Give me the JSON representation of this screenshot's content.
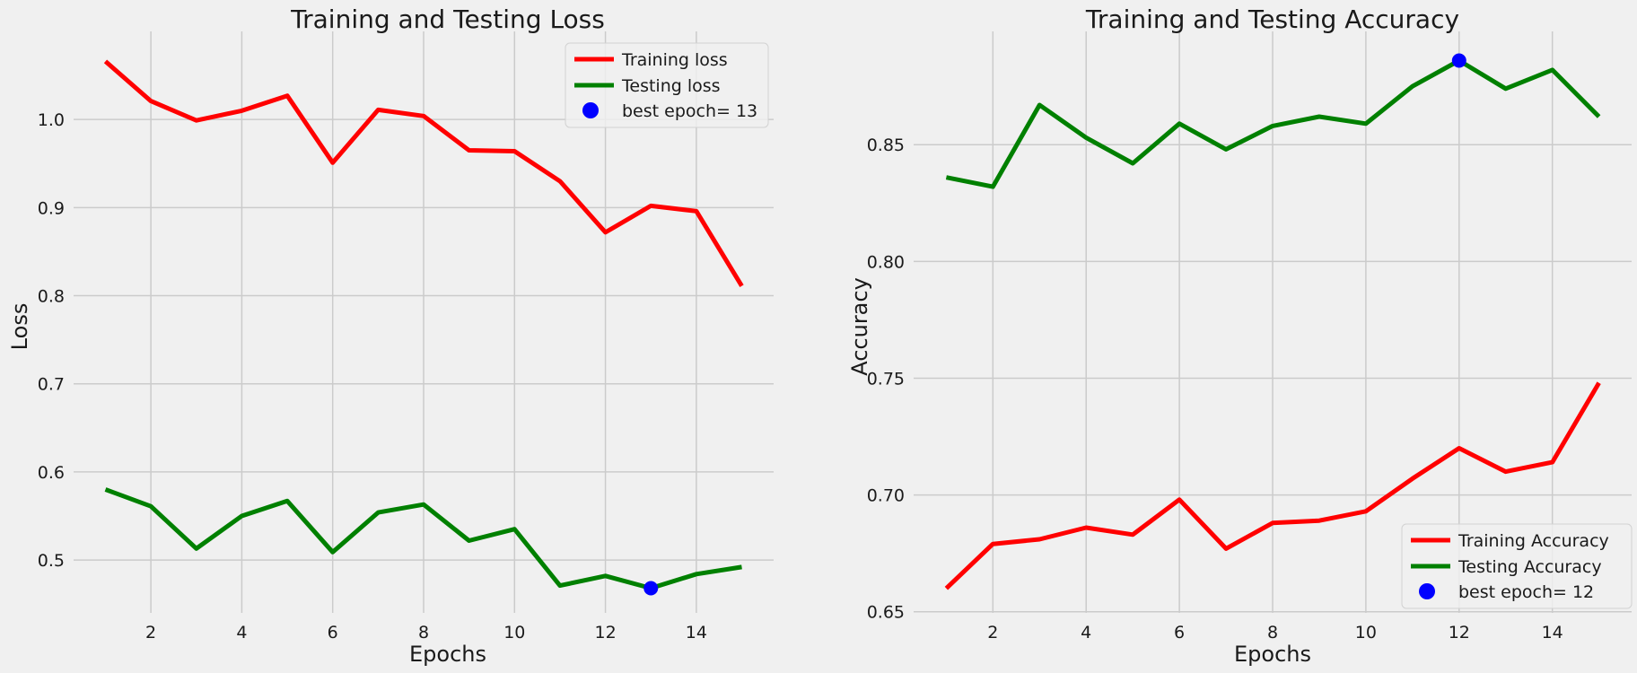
{
  "chart_data": [
    {
      "type": "line",
      "title": "Training and Testing Loss",
      "xlabel": "Epochs",
      "ylabel": "Loss",
      "x": [
        1,
        2,
        3,
        4,
        5,
        6,
        7,
        8,
        9,
        10,
        11,
        12,
        13,
        14,
        15
      ],
      "xlim": [
        0.3,
        15.7
      ],
      "ylim": [
        0.44,
        1.1
      ],
      "xticks": [
        2,
        4,
        6,
        8,
        10,
        12,
        14
      ],
      "yticks": [
        0.5,
        0.6,
        0.7,
        0.8,
        0.9,
        1.0
      ],
      "ytick_labels": [
        "0.5",
        "0.6",
        "0.7",
        "0.8",
        "0.9",
        "1.0"
      ],
      "grid": true,
      "legend_position": "top-right",
      "series": [
        {
          "name": "Training loss",
          "color": "#ff0000",
          "values": [
            1.066,
            1.021,
            0.999,
            1.01,
            1.027,
            0.951,
            1.011,
            1.004,
            0.965,
            0.964,
            0.93,
            0.872,
            0.902,
            0.896,
            0.811
          ]
        },
        {
          "name": "Testing loss",
          "color": "#008000",
          "values": [
            0.58,
            0.561,
            0.513,
            0.55,
            0.567,
            0.509,
            0.554,
            0.563,
            0.522,
            0.535,
            0.471,
            0.482,
            0.468,
            0.484,
            0.492
          ]
        }
      ],
      "best_point": {
        "label": "best epoch= 13",
        "x": 13,
        "y": 0.468,
        "color": "#0000ff"
      }
    },
    {
      "type": "line",
      "title": "Training and Testing Accuracy",
      "xlabel": "Epochs",
      "ylabel": "Accuracy",
      "x": [
        1,
        2,
        3,
        4,
        5,
        6,
        7,
        8,
        9,
        10,
        11,
        12,
        13,
        14,
        15
      ],
      "xlim": [
        0.3,
        15.7
      ],
      "ylim": [
        0.6495,
        0.8985
      ],
      "xticks": [
        2,
        4,
        6,
        8,
        10,
        12,
        14
      ],
      "yticks": [
        0.65,
        0.7,
        0.75,
        0.8,
        0.85
      ],
      "ytick_labels": [
        "0.65",
        "0.70",
        "0.75",
        "0.80",
        "0.85"
      ],
      "grid": true,
      "legend_position": "bottom-right",
      "series": [
        {
          "name": "Training Accuracy",
          "color": "#ff0000",
          "values": [
            0.66,
            0.679,
            0.681,
            0.686,
            0.683,
            0.698,
            0.677,
            0.688,
            0.689,
            0.693,
            0.707,
            0.72,
            0.71,
            0.714,
            0.748
          ]
        },
        {
          "name": "Testing Accuracy",
          "color": "#008000",
          "values": [
            0.836,
            0.832,
            0.867,
            0.853,
            0.842,
            0.859,
            0.848,
            0.858,
            0.862,
            0.859,
            0.875,
            0.886,
            0.874,
            0.882,
            0.862
          ]
        }
      ],
      "best_point": {
        "label": "best epoch= 12",
        "x": 12,
        "y": 0.886,
        "color": "#0000ff"
      }
    }
  ]
}
